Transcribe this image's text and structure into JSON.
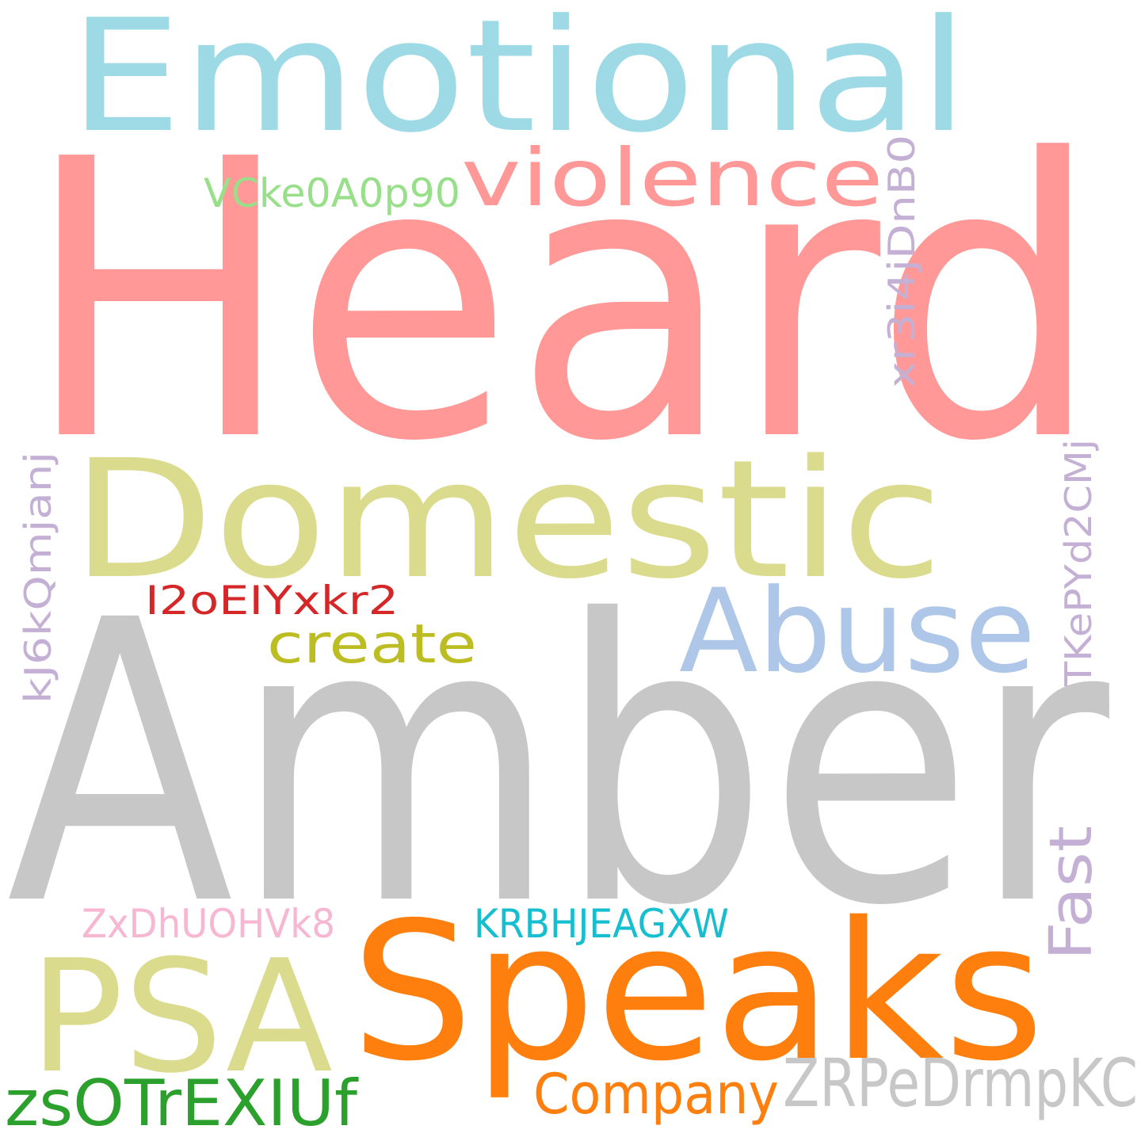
{
  "words": [
    {
      "text": "Heard",
      "color": "#ff9896",
      "orientation": "horizontal"
    },
    {
      "text": "Amber",
      "color": "#c7c7c7",
      "orientation": "horizontal"
    },
    {
      "text": "Domestic",
      "color": "#dbdb8d",
      "orientation": "horizontal"
    },
    {
      "text": "Emotional",
      "color": "#9edae5",
      "orientation": "horizontal"
    },
    {
      "text": "Speaks",
      "color": "#ff7f0e",
      "orientation": "horizontal"
    },
    {
      "text": "PSA",
      "color": "#dbdb8d",
      "orientation": "horizontal"
    },
    {
      "text": "Abuse",
      "color": "#aec7e8",
      "orientation": "horizontal"
    },
    {
      "text": "violence",
      "color": "#ff9896",
      "orientation": "horizontal"
    },
    {
      "text": "ZRPeDrmpKC",
      "color": "#c7c7c7",
      "orientation": "horizontal"
    },
    {
      "text": "zsOTrEXIUf",
      "color": "#2ca02c",
      "orientation": "horizontal"
    },
    {
      "text": "Company",
      "color": "#ff7f0e",
      "orientation": "horizontal"
    },
    {
      "text": "create",
      "color": "#bcbd22",
      "orientation": "horizontal"
    },
    {
      "text": "I2oEIYxkr2",
      "color": "#d62728",
      "orientation": "horizontal"
    },
    {
      "text": "KRBHJEAGXW",
      "color": "#17becf",
      "orientation": "horizontal"
    },
    {
      "text": "ZxDhUOHVk8",
      "color": "#f7b6d2",
      "orientation": "horizontal"
    },
    {
      "text": "VCke0A0p90",
      "color": "#98df8a",
      "orientation": "horizontal"
    },
    {
      "text": "xr3i4jDnB0",
      "color": "#c5b0d5",
      "orientation": "vertical"
    },
    {
      "text": "kJ6kQmjanj",
      "color": "#c5b0d5",
      "orientation": "vertical"
    },
    {
      "text": "TKePYd2CMj",
      "color": "#c5b0d5",
      "orientation": "vertical"
    },
    {
      "text": "Fast",
      "color": "#c5b0d5",
      "orientation": "vertical"
    }
  ]
}
